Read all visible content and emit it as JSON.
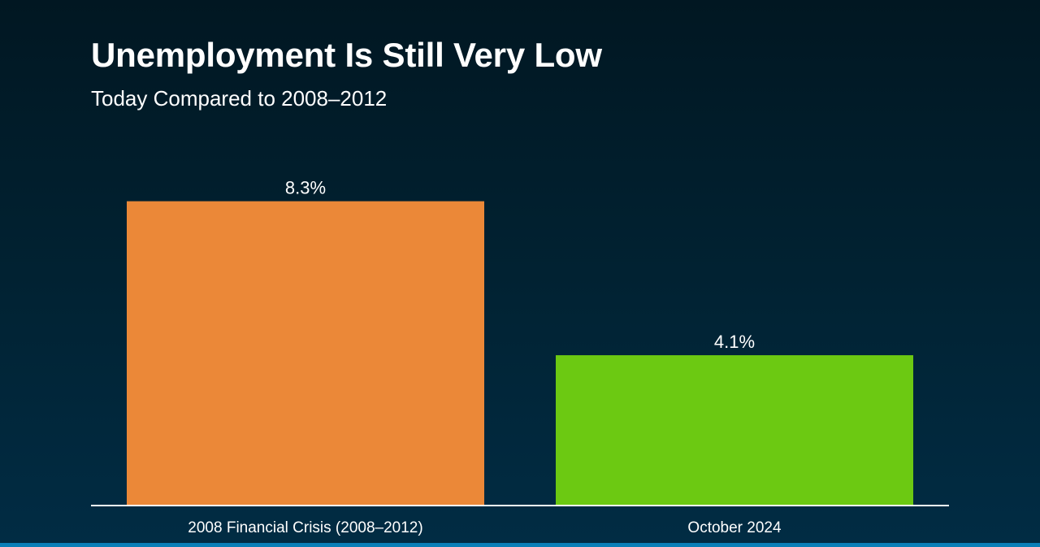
{
  "title": "Unemployment Is Still Very Low",
  "subtitle": "Today Compared to 2008–2012",
  "colors": {
    "background_top": "#011722",
    "background_bottom": "#012c44",
    "bar_1": "#eb8838",
    "bar_2": "#6cc912",
    "axis": "#ffffff",
    "text": "#ffffff",
    "bottom_strip": "#0a7fb8"
  },
  "chart_data": {
    "type": "bar",
    "title": "Unemployment Is Still Very Low",
    "subtitle": "Today Compared to 2008–2012",
    "categories": [
      "2008 Financial Crisis (2008–2012)",
      "October 2024"
    ],
    "values": [
      8.3,
      4.1
    ],
    "data_labels": [
      "8.3%",
      "4.1%"
    ],
    "bar_colors": [
      "#eb8838",
      "#6cc912"
    ],
    "ylim": [
      0,
      9
    ],
    "grid": false,
    "legend": "none"
  }
}
